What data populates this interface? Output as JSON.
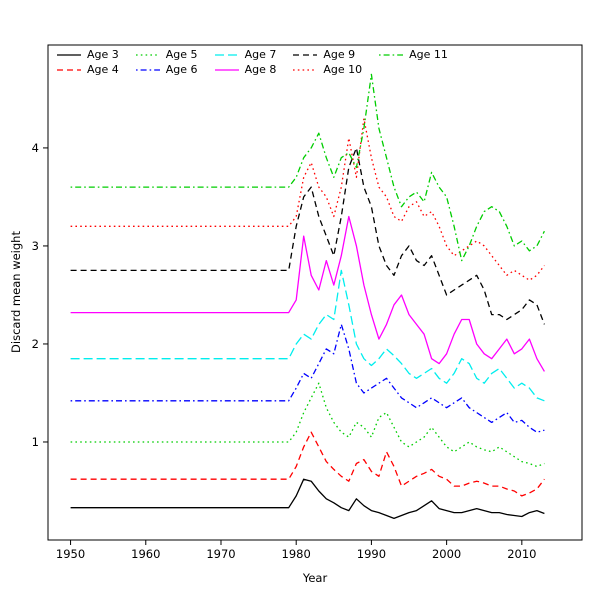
{
  "chart_data": {
    "type": "line",
    "title": "",
    "xlabel": "Year",
    "ylabel": "Discard mean weight",
    "xlim": [
      1947,
      2018
    ],
    "ylim": [
      0,
      5.05
    ],
    "x_ticks": [
      1950,
      1960,
      1970,
      1980,
      1990,
      2000,
      2010
    ],
    "y_ticks": [
      1,
      2,
      3,
      4
    ],
    "grid": false,
    "legend_position": "top-left inside plot, 5 columns, column-wise",
    "years_start": 1950,
    "flat_until": 1979,
    "values_years": "1980-2013",
    "series": [
      {
        "name": "Age 3",
        "color": "#000000",
        "linetype": "solid",
        "flat_value": 0.33,
        "values": [
          0.45,
          0.62,
          0.6,
          0.5,
          0.42,
          0.38,
          0.33,
          0.3,
          0.42,
          0.35,
          0.3,
          0.28,
          0.25,
          0.22,
          0.25,
          0.28,
          0.3,
          0.35,
          0.4,
          0.32,
          0.3,
          0.28,
          0.28,
          0.3,
          0.32,
          0.3,
          0.28,
          0.28,
          0.26,
          0.25,
          0.24,
          0.28,
          0.3,
          0.27
        ]
      },
      {
        "name": "Age 4",
        "color": "#ff0000",
        "linetype": "dashed",
        "flat_value": 0.62,
        "values": [
          0.75,
          0.95,
          1.1,
          0.95,
          0.8,
          0.72,
          0.65,
          0.6,
          0.78,
          0.82,
          0.7,
          0.65,
          0.9,
          0.75,
          0.55,
          0.6,
          0.65,
          0.68,
          0.72,
          0.65,
          0.62,
          0.55,
          0.55,
          0.58,
          0.6,
          0.58,
          0.55,
          0.55,
          0.52,
          0.5,
          0.45,
          0.48,
          0.52,
          0.62
        ]
      },
      {
        "name": "Age 5",
        "color": "#00cd00",
        "linetype": "dotted",
        "flat_value": 1.0,
        "values": [
          1.1,
          1.3,
          1.45,
          1.6,
          1.35,
          1.2,
          1.1,
          1.05,
          1.2,
          1.15,
          1.05,
          1.25,
          1.3,
          1.15,
          1.0,
          0.95,
          1.0,
          1.05,
          1.15,
          1.05,
          0.95,
          0.9,
          0.95,
          1.0,
          0.95,
          0.92,
          0.9,
          0.95,
          0.9,
          0.85,
          0.8,
          0.78,
          0.75,
          0.78
        ]
      },
      {
        "name": "Age 6",
        "color": "#0000ff",
        "linetype": "dotdash",
        "flat_value": 1.42,
        "values": [
          1.55,
          1.7,
          1.65,
          1.8,
          1.95,
          1.9,
          2.2,
          1.95,
          1.6,
          1.5,
          1.55,
          1.6,
          1.65,
          1.55,
          1.45,
          1.4,
          1.35,
          1.4,
          1.45,
          1.4,
          1.35,
          1.4,
          1.45,
          1.35,
          1.3,
          1.25,
          1.2,
          1.25,
          1.3,
          1.2,
          1.22,
          1.15,
          1.1,
          1.12
        ]
      },
      {
        "name": "Age 7",
        "color": "#00eeee",
        "linetype": "longdash",
        "flat_value": 1.85,
        "values": [
          2.0,
          2.1,
          2.05,
          2.2,
          2.3,
          2.25,
          2.75,
          2.4,
          2.0,
          1.85,
          1.78,
          1.85,
          1.95,
          1.88,
          1.8,
          1.7,
          1.65,
          1.7,
          1.75,
          1.65,
          1.6,
          1.7,
          1.85,
          1.8,
          1.65,
          1.6,
          1.7,
          1.75,
          1.65,
          1.55,
          1.6,
          1.55,
          1.45,
          1.42
        ]
      },
      {
        "name": "Age 8",
        "color": "#ff00ff",
        "linetype": "solid",
        "flat_value": 2.32,
        "values": [
          2.45,
          3.1,
          2.7,
          2.55,
          2.85,
          2.6,
          2.9,
          3.3,
          3.0,
          2.6,
          2.3,
          2.05,
          2.2,
          2.4,
          2.5,
          2.3,
          2.2,
          2.1,
          1.85,
          1.8,
          1.9,
          2.1,
          2.25,
          2.25,
          2.0,
          1.9,
          1.85,
          1.95,
          2.05,
          1.9,
          1.95,
          2.05,
          1.85,
          1.72
        ]
      },
      {
        "name": "Age 9",
        "color": "#000000",
        "linetype": "dashed",
        "flat_value": 2.75,
        "values": [
          3.2,
          3.5,
          3.6,
          3.3,
          3.1,
          2.9,
          3.3,
          3.8,
          4.0,
          3.6,
          3.4,
          3.0,
          2.8,
          2.7,
          2.9,
          3.0,
          2.85,
          2.8,
          2.9,
          2.7,
          2.5,
          2.55,
          2.6,
          2.65,
          2.7,
          2.55,
          2.3,
          2.3,
          2.25,
          2.3,
          2.35,
          2.45,
          2.4,
          2.2
        ]
      },
      {
        "name": "Age 10",
        "color": "#ff0000",
        "linetype": "dotted",
        "flat_value": 3.2,
        "values": [
          3.3,
          3.7,
          3.85,
          3.6,
          3.5,
          3.3,
          3.6,
          4.1,
          3.7,
          4.3,
          3.9,
          3.6,
          3.5,
          3.3,
          3.25,
          3.4,
          3.45,
          3.3,
          3.35,
          3.2,
          3.0,
          2.9,
          2.95,
          3.0,
          3.05,
          3.0,
          2.9,
          2.8,
          2.7,
          2.75,
          2.7,
          2.65,
          2.7,
          2.8
        ]
      },
      {
        "name": "Age 11",
        "color": "#00cd00",
        "linetype": "dotdash",
        "flat_value": 3.6,
        "values": [
          3.7,
          3.9,
          4.0,
          4.15,
          3.9,
          3.7,
          3.9,
          3.95,
          3.8,
          4.2,
          4.75,
          4.2,
          3.9,
          3.6,
          3.4,
          3.5,
          3.55,
          3.45,
          3.75,
          3.6,
          3.5,
          3.2,
          2.85,
          3.0,
          3.2,
          3.35,
          3.4,
          3.35,
          3.2,
          3.0,
          3.05,
          2.95,
          3.0,
          3.15
        ]
      }
    ]
  }
}
